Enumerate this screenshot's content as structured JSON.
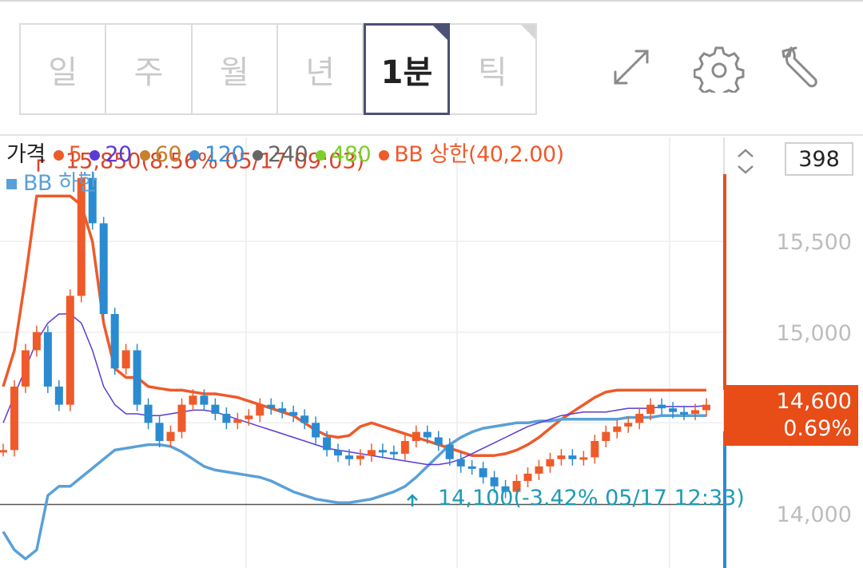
{
  "period_tabs": [
    {
      "label": "일",
      "active": false
    },
    {
      "label": "주",
      "active": false
    },
    {
      "label": "월",
      "active": false
    },
    {
      "label": "년",
      "active": false
    },
    {
      "label": "1분",
      "active": true
    },
    {
      "label": "틱",
      "active": false
    }
  ],
  "toolbar": {
    "expand_icon": "expand-icon",
    "settings_icon": "gear-icon",
    "tools_icon": "wrench-icon"
  },
  "legend": {
    "price": "가격",
    "ma": [
      {
        "label": "5",
        "color": "#ef5a2a"
      },
      {
        "label": "20",
        "color": "#5b3bd6"
      },
      {
        "label": "60",
        "color": "#c7802d"
      },
      {
        "label": "120",
        "color": "#3c8fd6"
      },
      {
        "label": "240",
        "color": "#666666"
      },
      {
        "label": "480",
        "color": "#7ccf2a"
      }
    ],
    "bb_upper": {
      "label": "BB 상한(40,2.00)",
      "color": "#ef5a2a"
    },
    "bb_lower": {
      "label": "BB 하한",
      "color": "#5aa0d8"
    }
  },
  "visible_count": "398",
  "current_price": {
    "price": "14,600",
    "change": "0.69%",
    "color": "#e84c17"
  },
  "chart_data": {
    "type": "candlestick",
    "y_ticks": [
      "15,500",
      "15,000",
      "14,000"
    ],
    "ylim": [
      13700,
      15950
    ],
    "high_annotation": "15,850(8.56% 05/17 09:03)",
    "low_annotation": "14,100(-3.42% 05/17 12:33)",
    "high_value": 15850,
    "low_value": 14100,
    "reference_line": 14050,
    "close_series": [
      14350,
      14700,
      14900,
      15000,
      14700,
      14600,
      15200,
      15850,
      15600,
      15100,
      14800,
      14900,
      14600,
      14500,
      14400,
      14450,
      14600,
      14650,
      14600,
      14550,
      14500,
      14520,
      14540,
      14600,
      14580,
      14560,
      14540,
      14500,
      14420,
      14350,
      14320,
      14300,
      14320,
      14350,
      14340,
      14330,
      14400,
      14450,
      14420,
      14380,
      14300,
      14260,
      14250,
      14200,
      14150,
      14120,
      14180,
      14220,
      14260,
      14300,
      14320,
      14300,
      14310,
      14400,
      14450,
      14480,
      14500,
      14550,
      14600,
      14580,
      14560,
      14550,
      14570,
      14600
    ],
    "ma20_series": [
      14500,
      14650,
      14800,
      14950,
      15050,
      15100,
      15100,
      15050,
      14900,
      14700,
      14600,
      14550,
      14550,
      14540,
      14540,
      14550,
      14560,
      14570,
      14570,
      14560,
      14540,
      14520,
      14500,
      14480,
      14460,
      14440,
      14420,
      14400,
      14380,
      14360,
      14350,
      14340,
      14330,
      14320,
      14310,
      14300,
      14290,
      14280,
      14270,
      14270,
      14280,
      14300,
      14330,
      14360,
      14390,
      14420,
      14450,
      14480,
      14500,
      14520,
      14540,
      14550,
      14560,
      14560,
      14560,
      14570,
      14580,
      14580,
      14580,
      14590,
      14590,
      14590,
      14590,
      14595
    ],
    "bb_upper_series": [
      14700,
      14900,
      15300,
      15750,
      15750,
      15750,
      15750,
      15700,
      15500,
      15050,
      14800,
      14750,
      14750,
      14700,
      14690,
      14680,
      14680,
      14670,
      14660,
      14660,
      14650,
      14640,
      14620,
      14600,
      14580,
      14560,
      14540,
      14500,
      14460,
      14430,
      14420,
      14430,
      14480,
      14500,
      14480,
      14460,
      14440,
      14420,
      14400,
      14380,
      14360,
      14340,
      14320,
      14320,
      14320,
      14330,
      14350,
      14380,
      14420,
      14470,
      14520,
      14560,
      14600,
      14640,
      14670,
      14680,
      14680,
      14680,
      14680,
      14680,
      14680,
      14680,
      14680,
      14680
    ],
    "bb_lower_series": [
      13900,
      13800,
      13750,
      13800,
      14100,
      14150,
      14150,
      14200,
      14250,
      14300,
      14350,
      14360,
      14370,
      14380,
      14380,
      14370,
      14340,
      14300,
      14260,
      14240,
      14230,
      14220,
      14210,
      14200,
      14180,
      14150,
      14120,
      14100,
      14080,
      14070,
      14060,
      14060,
      14070,
      14080,
      14100,
      14120,
      14150,
      14200,
      14260,
      14320,
      14380,
      14420,
      14450,
      14470,
      14480,
      14490,
      14500,
      14500,
      14510,
      14510,
      14520,
      14520,
      14520,
      14520,
      14520,
      14520,
      14530,
      14530,
      14530,
      14540,
      14540,
      14540,
      14540,
      14540
    ]
  }
}
